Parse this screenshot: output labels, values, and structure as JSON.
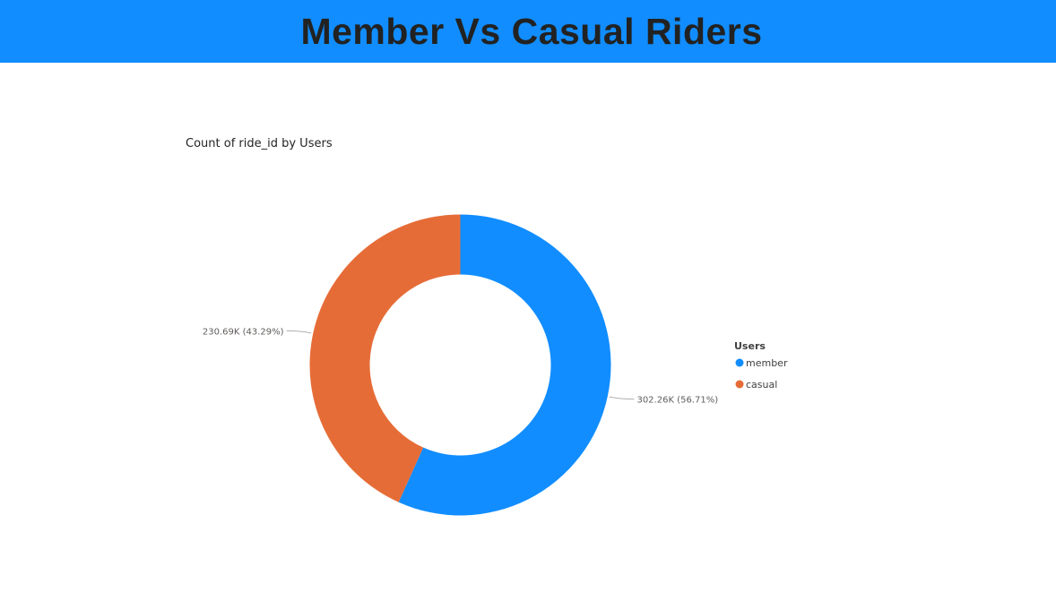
{
  "header": {
    "title": "Member Vs Casual Riders",
    "background_color": "#118dff"
  },
  "chart_data": {
    "type": "pie",
    "subtype": "donut",
    "title": "Count of ride_id by Users",
    "legend_title": "Users",
    "legend_position": "right",
    "series": [
      {
        "name": "member",
        "value": 302.26,
        "unit": "K",
        "percent": 56.71,
        "label": "302.26K (56.71%)",
        "color": "#118dff"
      },
      {
        "name": "casual",
        "value": 230.69,
        "unit": "K",
        "percent": 43.29,
        "label": "230.69K (43.29%)",
        "color": "#e66c37"
      }
    ]
  }
}
